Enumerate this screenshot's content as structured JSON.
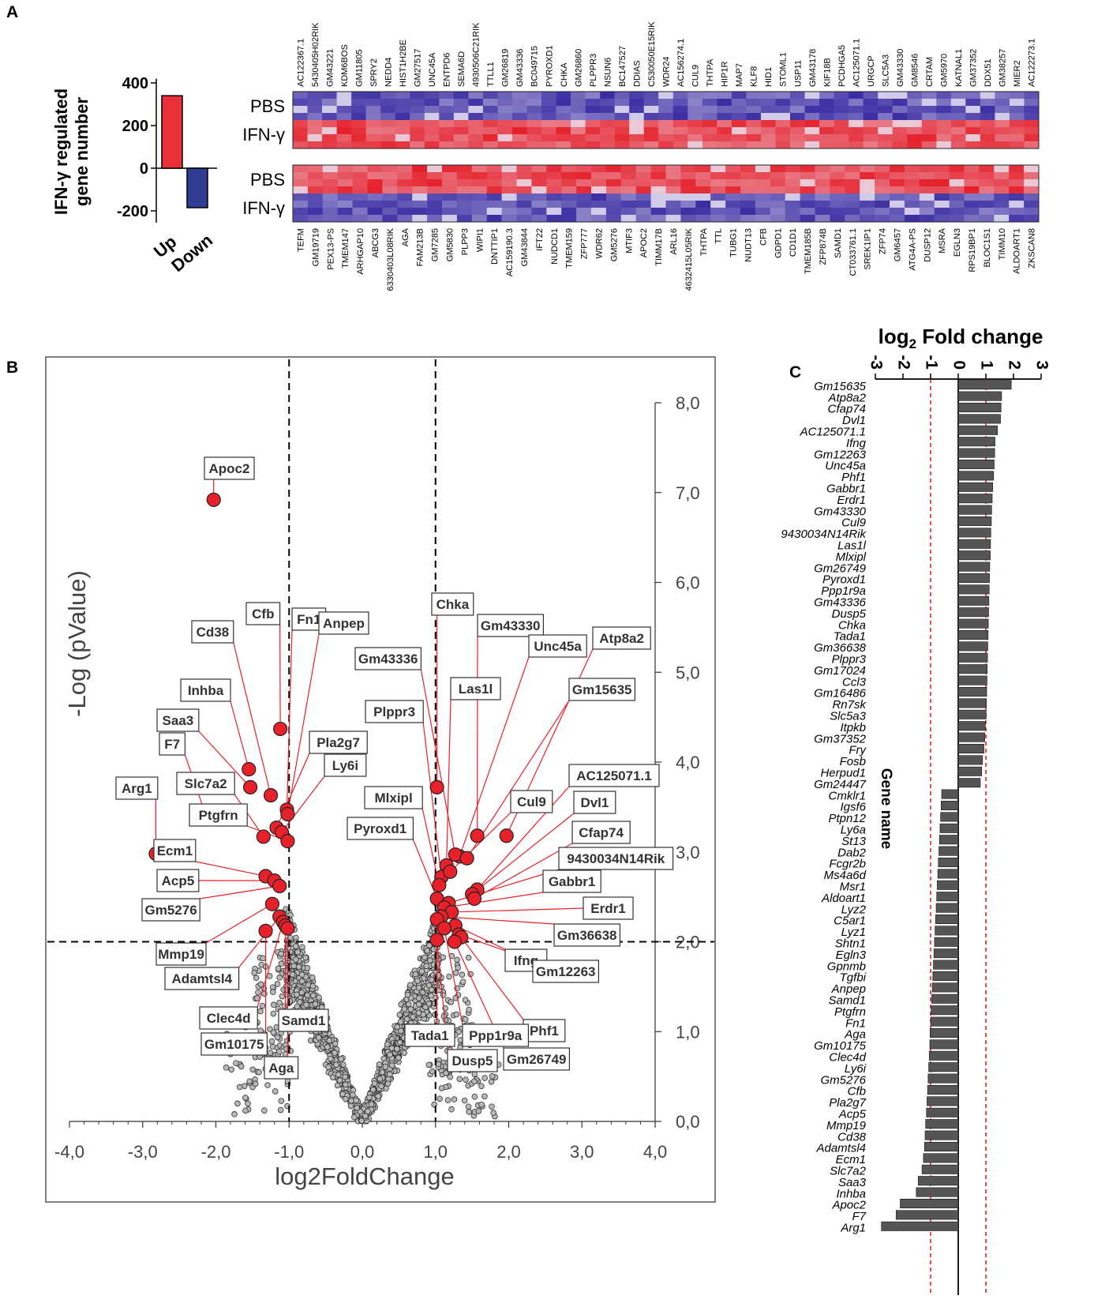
{
  "panels": {
    "a": "A",
    "b": "B",
    "c": "C"
  },
  "colors": {
    "up_bar": "#e8303a",
    "down_bar": "#2f3d92",
    "heat_high": "#e5202a",
    "heat_low": "#3b2ea3",
    "heat_mid": "#ece6f4",
    "volcano_sig": "#e8202a",
    "volcano_ns": "#b8b8b8",
    "label_line": "#e8202a",
    "fc_bar": "#555555",
    "threshold_red": "#e8202a"
  },
  "chart_data": [
    {
      "id": "A-bar",
      "type": "bar",
      "ylabel": "IFN-γ regulated gene number",
      "ylim": [
        -200,
        400
      ],
      "yticks": [
        -200,
        0,
        200,
        400
      ],
      "categories": [
        "Up",
        "Down"
      ],
      "values": [
        340,
        -185
      ]
    },
    {
      "id": "A-heatmap-up",
      "type": "heatmap",
      "row_labels": [
        "PBS",
        "IFN-γ"
      ],
      "genes": [
        "AC122367.1",
        "5430405H02RIK",
        "GM43221",
        "KDM6BOS",
        "GM11805",
        "SPRY2",
        "NEDD4",
        "HIST1H2BE",
        "GM27517",
        "UNC45A",
        "ENTPD6",
        "SEMA6D",
        "4930506C21RIK",
        "TTLL1",
        "GM26819",
        "GM43336",
        "BC049715",
        "PYROXD1",
        "CHKA",
        "GM26860",
        "PLPPR3",
        "NSUN6",
        "BC147527",
        "DDIAS",
        "C530050E15RIK",
        "WDR24",
        "AC156274.1",
        "CUL9",
        "THTPA",
        "HIP1R",
        "MAP7",
        "KLF8",
        "HID1",
        "STOML1",
        "USP11",
        "GM43178",
        "KIF18B",
        "PCDHGA5",
        "AC125071.1",
        "URGCP",
        "SLC5A3",
        "GM43330",
        "GM8546",
        "CRTAM",
        "GM5970",
        "KATNAL1",
        "GM37352",
        "DDX51",
        "GM38257",
        "MIER2",
        "AC122273.1"
      ]
    },
    {
      "id": "A-heatmap-down",
      "type": "heatmap",
      "row_labels": [
        "PBS",
        "IFN-γ"
      ],
      "genes": [
        "TEFM",
        "GM19719",
        "PEX13-PS",
        "TMEM147",
        "ARHGAP10",
        "ABCG3",
        "6330403L08RIK",
        "AGA",
        "FAM213B",
        "GM7285",
        "GM5830",
        "PLPP3",
        "WIPI1",
        "DNTTIP1",
        "AC159190.3",
        "GM43844",
        "IFT22",
        "NUDCD1",
        "TMEM159",
        "ZFP777",
        "WDR62",
        "GM5276",
        "MTIF3",
        "APOC2",
        "TIMM17B",
        "ARL16",
        "4632415L05RIK",
        "THTPA",
        "TTL",
        "TUBG1",
        "NUDT13",
        "CFB",
        "GDPD1",
        "CD1D1",
        "TMEM185B",
        "ZFP874B",
        "SAMD1",
        "CT033761.1",
        "SREK1IP1",
        "ZFP74",
        "GM6457",
        "ATG4A-PS",
        "DUSP12",
        "MSRA",
        "EGLN3",
        "RPS19BP1",
        "BLOC1S1",
        "TIMM10",
        "ALDOART1",
        "ZKSCAN8"
      ]
    },
    {
      "id": "B-volcano",
      "type": "scatter",
      "xlabel": "log2FoldChange",
      "ylabel": "-Log (pValue)",
      "xlim": [
        -4.0,
        4.0
      ],
      "ylim": [
        0.0,
        8.0
      ],
      "xticks": [
        "-4,0",
        "-3,0",
        "-2,0",
        "-1,0",
        "0,0",
        "1,0",
        "2,0",
        "3,0",
        "4,0"
      ],
      "yticks": [
        "0,0",
        "1,0",
        "2,0",
        "3,0",
        "4,0",
        "5,0",
        "6,0",
        "7,0",
        "8,0"
      ],
      "threshold_x": [
        -1.0,
        1.0
      ],
      "threshold_y": 2.0,
      "significant": [
        {
          "label": "Apoc2",
          "x": -2.03,
          "y": 6.92
        },
        {
          "label": "Arg1",
          "x": -2.82,
          "y": 2.98
        },
        {
          "label": "F7",
          "x": -2.12,
          "y": 3.37
        },
        {
          "label": "Saa3",
          "x": -1.53,
          "y": 3.72
        },
        {
          "label": "Inhba",
          "x": -1.55,
          "y": 3.92
        },
        {
          "label": "Cd38",
          "x": -1.25,
          "y": 3.63
        },
        {
          "label": "Cfb",
          "x": -1.12,
          "y": 4.37
        },
        {
          "label": "Fn1",
          "x": -1.03,
          "y": 3.47
        },
        {
          "label": "Anpep",
          "x": -1.02,
          "y": 3.42
        },
        {
          "label": "Pla2g7",
          "x": -1.17,
          "y": 3.27
        },
        {
          "label": "Slc7a2",
          "x": -1.35,
          "y": 3.17
        },
        {
          "label": "Ly6i",
          "x": -1.1,
          "y": 3.22
        },
        {
          "label": "Ptgfrn",
          "x": -1.02,
          "y": 3.12
        },
        {
          "label": "Ecm1",
          "x": -1.32,
          "y": 2.73
        },
        {
          "label": "Acp5",
          "x": -1.2,
          "y": 2.68
        },
        {
          "label": "Gm5276",
          "x": -1.13,
          "y": 2.62
        },
        {
          "label": "Mmp19",
          "x": -1.23,
          "y": 2.42
        },
        {
          "label": "Adamtsl4",
          "x": -1.13,
          "y": 2.28
        },
        {
          "label": "Clec4d",
          "x": -1.08,
          "y": 2.22
        },
        {
          "label": "Samd1",
          "x": -1.05,
          "y": 2.18
        },
        {
          "label": "Gm10175",
          "x": -1.32,
          "y": 2.12
        },
        {
          "label": "Aga",
          "x": -1.02,
          "y": 2.15
        },
        {
          "label": "Chka",
          "x": 1.02,
          "y": 3.72
        },
        {
          "label": "Gm43330",
          "x": 1.57,
          "y": 3.18
        },
        {
          "label": "Unc45a",
          "x": 1.33,
          "y": 2.95
        },
        {
          "label": "Atp8a2",
          "x": 1.97,
          "y": 3.18
        },
        {
          "label": "Gm43336",
          "x": 1.27,
          "y": 2.97
        },
        {
          "label": "Las1l",
          "x": 1.15,
          "y": 2.85
        },
        {
          "label": "Gm15635",
          "x": 1.43,
          "y": 2.93
        },
        {
          "label": "Plppr3",
          "x": 1.08,
          "y": 2.72
        },
        {
          "label": "AC125071.1",
          "x": 1.57,
          "y": 2.58
        },
        {
          "label": "Mlxipl",
          "x": 1.05,
          "y": 2.63
        },
        {
          "label": "Cul9",
          "x": 1.2,
          "y": 2.78
        },
        {
          "label": "Dvl1",
          "x": 1.5,
          "y": 2.53
        },
        {
          "label": "Pyroxd1",
          "x": 1.02,
          "y": 2.48
        },
        {
          "label": "Cfap74",
          "x": 1.53,
          "y": 2.48
        },
        {
          "label": "9430034N14Rik",
          "x": 1.18,
          "y": 2.43
        },
        {
          "label": "Gabbr1",
          "x": 1.12,
          "y": 2.38
        },
        {
          "label": "Erdr1",
          "x": 1.22,
          "y": 2.33
        },
        {
          "label": "Gm36638",
          "x": 1.08,
          "y": 2.28
        },
        {
          "label": "Ifng",
          "x": 1.27,
          "y": 2.18
        },
        {
          "label": "Gm12263",
          "x": 1.32,
          "y": 2.08
        },
        {
          "label": "Phf1",
          "x": 1.35,
          "y": 2.05
        },
        {
          "label": "Tada1",
          "x": 1.02,
          "y": 2.25
        },
        {
          "label": "Ppp1r9a",
          "x": 1.12,
          "y": 2.15
        },
        {
          "label": "Dusp5",
          "x": 1.02,
          "y": 2.02
        },
        {
          "label": "Gm26749",
          "x": 1.26,
          "y": 2.0
        }
      ]
    },
    {
      "id": "C-foldchange",
      "type": "bar",
      "orientation": "horizontal",
      "title": "log",
      "title_sub": "2",
      "title_rest": " Fold change",
      "ylabel": "Gene name",
      "xlim": [
        -3,
        3
      ],
      "xticks": [
        "-3",
        "-2",
        "-1",
        "0",
        "1",
        "2",
        "3"
      ],
      "thresholds": [
        -1,
        1
      ],
      "categories": [
        "Gm15635",
        "Atp8a2",
        "Cfap74",
        "Dvl1",
        "AC125071.1",
        "Ifng",
        "Gm12263",
        "Unc45a",
        "Phf1",
        "Gabbr1",
        "Erdr1",
        "Gm43330",
        "Cul9",
        "9430034N14Rik",
        "Las1l",
        "Mlxipl",
        "Gm26749",
        "Pyroxd1",
        "Ppp1r9a",
        "Gm43336",
        "Dusp5",
        "Chka",
        "Tada1",
        "Gm36638",
        "Plppr3",
        "Gm17024",
        "Ccl3",
        "Gm16486",
        "Rn7sk",
        "Slc5a3",
        "Itpkb",
        "Gm37352",
        "Fry",
        "Fosb",
        "Herpud1",
        "Gm24447",
        "Cmklr1",
        "Igsf6",
        "Ptpn12",
        "Ly6a",
        "St13",
        "Dab2",
        "Fcgr2b",
        "Ms4a6d",
        "Msr1",
        "Aldoart1",
        "Lyz2",
        "C5ar1",
        "Lyz1",
        "Shtn1",
        "Egln3",
        "Gpnmb",
        "Tgfbi",
        "Anpep",
        "Samd1",
        "Ptgfrn",
        "Fn1",
        "Aga",
        "Gm10175",
        "Clec4d",
        "Ly6i",
        "Gm5276",
        "Cfb",
        "Pla2g7",
        "Acp5",
        "Mmp19",
        "Cd38",
        "Adamtsl4",
        "Ecm1",
        "Slc7a2",
        "Saa3",
        "Inhba",
        "Apoc2",
        "F7",
        "Arg1"
      ],
      "values": [
        1.92,
        1.57,
        1.55,
        1.53,
        1.42,
        1.33,
        1.32,
        1.3,
        1.28,
        1.25,
        1.23,
        1.21,
        1.2,
        1.18,
        1.17,
        1.16,
        1.14,
        1.13,
        1.12,
        1.11,
        1.1,
        1.09,
        1.08,
        1.07,
        1.06,
        1.05,
        1.04,
        1.03,
        1.02,
        1.01,
        0.98,
        0.96,
        0.93,
        0.88,
        0.85,
        0.8,
        -0.6,
        -0.62,
        -0.64,
        -0.66,
        -0.68,
        -0.7,
        -0.72,
        -0.74,
        -0.76,
        -0.78,
        -0.8,
        -0.82,
        -0.84,
        -0.86,
        -0.88,
        -0.9,
        -0.92,
        -0.94,
        -0.96,
        -0.98,
        -1.0,
        -1.02,
        -1.03,
        -1.05,
        -1.07,
        -1.09,
        -1.11,
        -1.13,
        -1.15,
        -1.18,
        -1.2,
        -1.22,
        -1.26,
        -1.31,
        -1.45,
        -1.52,
        -2.1,
        -2.25,
        -2.78
      ]
    }
  ]
}
